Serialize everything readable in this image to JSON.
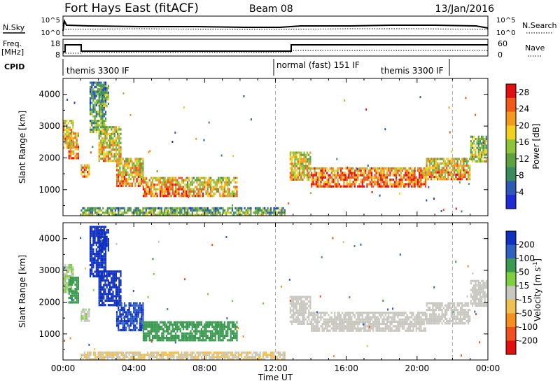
{
  "header": {
    "station": "Fort Hays East (fitACF)",
    "beam": "Beam 08",
    "date": "13/Jan/2016"
  },
  "nsky_panel": {
    "left_label": "N.Sky",
    "right_label": "N.Search",
    "left_ticks": [
      "10^5",
      "10^0"
    ],
    "right_ticks": [
      "10^5",
      "10^0"
    ]
  },
  "freq_panel": {
    "left_label_line1": "Freq.",
    "left_label_line2": "[MHz]",
    "right_label": "Nave",
    "left_ticks": [
      "18",
      "8"
    ],
    "right_ticks": [
      "60",
      "0"
    ]
  },
  "cpid": {
    "label": "CPID",
    "segments": [
      {
        "start_h": 0,
        "end_h": 12,
        "label": "themis 3300 IF"
      },
      {
        "start_h": 12,
        "end_h": 22,
        "label": "normal (fast) 151 IF"
      },
      {
        "start_h": 22,
        "end_h": 24,
        "label": ""
      }
    ],
    "extra_label": "themis 3300 IF"
  },
  "chart_data": [
    {
      "type": "heatmap",
      "name": "power",
      "ylabel": "Slant Range [km]",
      "yticks": [
        1000,
        2000,
        3000,
        4000
      ],
      "ylim": [
        180,
        4500
      ],
      "xlim": [
        0,
        24
      ],
      "colorbar_label": "Power [dB]",
      "colorbar_ticks": [
        4,
        8,
        12,
        16,
        20,
        24,
        28
      ],
      "colorbar_range": [
        0,
        30
      ],
      "colors": [
        "#1f2bd6",
        "#2f58b8",
        "#3a8c5c",
        "#5fa040",
        "#8ec43a",
        "#f0d020",
        "#f59a20",
        "#ef5a18",
        "#e01010"
      ]
    },
    {
      "type": "heatmap",
      "name": "velocity",
      "ylabel": "Slant Range [km]",
      "yticks": [
        1000,
        2000,
        3000,
        4000
      ],
      "ylim": [
        180,
        4500
      ],
      "xlim": [
        0,
        24
      ],
      "xticks": [
        "00:00",
        "04:00",
        "08:00",
        "12:00",
        "16:00",
        "20:00",
        "00:00"
      ],
      "xlabel": "Time UT",
      "colorbar_label": "Velocity [m s",
      "colorbar_label_sup": "-1",
      "colorbar_label_end": "]",
      "colorbar_ticks": [
        "200",
        "100",
        "50",
        "15",
        "-15",
        "-50",
        "-100",
        "-200"
      ],
      "colors": [
        "#1030c0",
        "#2f60c0",
        "#3a9a50",
        "#7ed040",
        "#c8c8c0",
        "#f0c050",
        "#f59020",
        "#ee5020",
        "#e01010"
      ]
    }
  ],
  "echo_regions": [
    {
      "t0": 0.0,
      "t1": 0.6,
      "r0": 2300,
      "r1": 3200,
      "power": 20,
      "vel": 15
    },
    {
      "t0": 0.3,
      "t1": 0.9,
      "r0": 2000,
      "r1": 2800,
      "power": 22,
      "vel": 50
    },
    {
      "t0": 1.0,
      "t1": 1.5,
      "r0": 1400,
      "r1": 1800,
      "power": 22,
      "vel": 15
    },
    {
      "t0": 1.5,
      "t1": 2.4,
      "r0": 2800,
      "r1": 4400,
      "power": 10,
      "vel": 200
    },
    {
      "t0": 2.0,
      "t1": 2.6,
      "r0": 3600,
      "r1": 4300,
      "power": 12,
      "vel": 200
    },
    {
      "t0": 2.0,
      "t1": 3.3,
      "r0": 1900,
      "r1": 3000,
      "power": 18,
      "vel": 200
    },
    {
      "t0": 3.0,
      "t1": 4.5,
      "r0": 1100,
      "r1": 2000,
      "power": 20,
      "vel": 150
    },
    {
      "t0": 4.5,
      "t1": 7.0,
      "r0": 800,
      "r1": 1400,
      "power": 22,
      "vel": 50
    },
    {
      "t0": 7.0,
      "t1": 9.8,
      "r0": 800,
      "r1": 1400,
      "power": 18,
      "vel": 60
    },
    {
      "t0": 12.8,
      "t1": 14.0,
      "r0": 1300,
      "r1": 2200,
      "power": 18,
      "vel": 0
    },
    {
      "t0": 14.0,
      "t1": 20.5,
      "r0": 1100,
      "r1": 1700,
      "power": 24,
      "vel": 0
    },
    {
      "t0": 20.5,
      "t1": 23.0,
      "r0": 1300,
      "r1": 2000,
      "power": 20,
      "vel": 0
    },
    {
      "t0": 23.0,
      "t1": 23.9,
      "r0": 1900,
      "r1": 2700,
      "power": 14,
      "vel": 0
    },
    {
      "t0": 1.0,
      "t1": 12.5,
      "r0": 200,
      "r1": 450,
      "power": 12,
      "vel": -15
    }
  ]
}
